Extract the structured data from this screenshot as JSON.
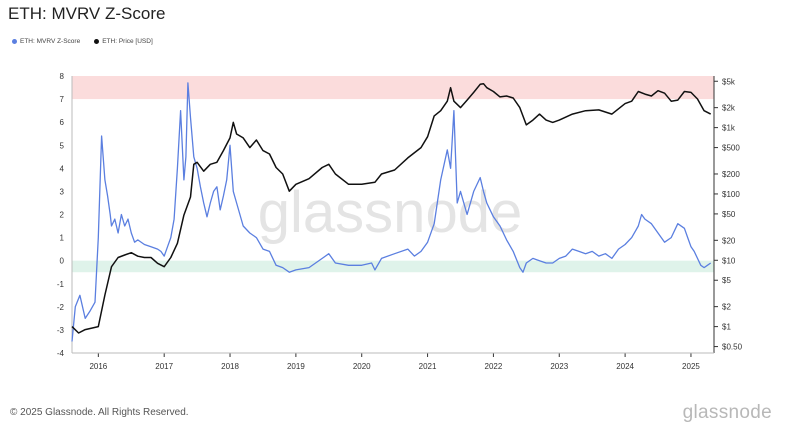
{
  "title": "ETH: MVRV Z-Score",
  "footer": "© 2025 Glassnode. All Rights Reserved.",
  "brand": "glassnode",
  "watermark": "glassnode",
  "chart_data": {
    "type": "line",
    "legend": [
      {
        "name": "ETH: MVRV Z-Score",
        "color": "#5b7fe0"
      },
      {
        "name": "ETH: Price [USD]",
        "color": "#111111"
      }
    ],
    "x_ticks": [
      "2016",
      "2017",
      "2018",
      "2019",
      "2020",
      "2021",
      "2022",
      "2023",
      "2024",
      "2025"
    ],
    "x_range": [
      2015.6,
      2025.35
    ],
    "left_axis": {
      "ticks": [
        8,
        7,
        6,
        5,
        4,
        3,
        2,
        1,
        0,
        -1,
        -2,
        -3,
        -4
      ],
      "range": [
        -4,
        8
      ]
    },
    "right_axis": {
      "scale": "log",
      "ticks": [
        "$5k",
        "$2k",
        "$1k",
        "$500",
        "$200",
        "$100",
        "$50",
        "$20",
        "$10",
        "$5",
        "$2",
        "$1",
        "$0.50"
      ],
      "tick_values": [
        5000,
        2000,
        1000,
        500,
        200,
        100,
        50,
        20,
        10,
        5,
        2,
        1,
        0.5
      ],
      "range": [
        0.4,
        6000
      ]
    },
    "bands": [
      {
        "zone": "overvalued",
        "from": 7,
        "to": 8,
        "color": "#fbdcdc"
      },
      {
        "zone": "undervalued",
        "from": -0.5,
        "to": 0,
        "color": "#dff3ea"
      }
    ],
    "series": [
      {
        "name": "ETH: MVRV Z-Score",
        "axis": "left",
        "color": "#5b7fe0",
        "x": [
          2015.6,
          2015.65,
          2015.72,
          2015.8,
          2015.87,
          2015.95,
          2016.0,
          2016.05,
          2016.1,
          2016.14,
          2016.18,
          2016.2,
          2016.25,
          2016.3,
          2016.35,
          2016.4,
          2016.45,
          2016.5,
          2016.55,
          2016.6,
          2016.7,
          2016.8,
          2016.9,
          2016.95,
          2017.0,
          2017.05,
          2017.1,
          2017.15,
          2017.2,
          2017.25,
          2017.3,
          2017.33,
          2017.36,
          2017.4,
          2017.45,
          2017.5,
          2017.55,
          2017.6,
          2017.65,
          2017.7,
          2017.75,
          2017.8,
          2017.85,
          2017.9,
          2017.95,
          2018.0,
          2018.05,
          2018.1,
          2018.2,
          2018.3,
          2018.4,
          2018.5,
          2018.6,
          2018.7,
          2018.8,
          2018.9,
          2019.0,
          2019.2,
          2019.4,
          2019.5,
          2019.6,
          2019.8,
          2020.0,
          2020.15,
          2020.2,
          2020.3,
          2020.5,
          2020.7,
          2020.8,
          2020.9,
          2021.0,
          2021.1,
          2021.2,
          2021.3,
          2021.35,
          2021.4,
          2021.45,
          2021.5,
          2021.6,
          2021.7,
          2021.8,
          2021.85,
          2021.9,
          2022.0,
          2022.1,
          2022.2,
          2022.3,
          2022.4,
          2022.45,
          2022.5,
          2022.6,
          2022.7,
          2022.8,
          2022.9,
          2023.0,
          2023.1,
          2023.2,
          2023.3,
          2023.4,
          2023.5,
          2023.6,
          2023.7,
          2023.8,
          2023.9,
          2024.0,
          2024.1,
          2024.2,
          2024.25,
          2024.3,
          2024.4,
          2024.5,
          2024.6,
          2024.7,
          2024.8,
          2024.9,
          2024.95,
          2025.0,
          2025.05,
          2025.1,
          2025.15,
          2025.2,
          2025.25,
          2025.3
        ],
        "y": [
          -3.5,
          -2.0,
          -1.5,
          -2.5,
          -2.2,
          -1.8,
          1.0,
          5.4,
          3.5,
          2.8,
          2.0,
          1.5,
          1.8,
          1.2,
          2.0,
          1.5,
          1.8,
          1.2,
          0.8,
          0.9,
          0.7,
          0.6,
          0.5,
          0.4,
          0.2,
          0.6,
          1.0,
          1.8,
          4.0,
          6.5,
          3.5,
          4.5,
          7.7,
          6.2,
          4.5,
          4.0,
          3.2,
          2.5,
          1.9,
          2.5,
          3.0,
          3.2,
          2.2,
          2.8,
          3.5,
          5.0,
          3.0,
          2.5,
          1.5,
          1.2,
          1.0,
          0.5,
          0.4,
          -0.2,
          -0.3,
          -0.5,
          -0.4,
          -0.3,
          0.1,
          0.3,
          -0.1,
          -0.2,
          -0.2,
          -0.1,
          -0.4,
          0.1,
          0.3,
          0.5,
          0.2,
          0.4,
          0.8,
          1.6,
          3.5,
          4.8,
          4.0,
          6.5,
          2.5,
          3.0,
          2.0,
          3.0,
          3.6,
          3.0,
          2.5,
          1.9,
          1.5,
          0.9,
          0.4,
          -0.3,
          -0.5,
          -0.1,
          0.1,
          0.0,
          -0.1,
          -0.1,
          0.1,
          0.2,
          0.5,
          0.4,
          0.3,
          0.4,
          0.2,
          0.3,
          0.1,
          0.5,
          0.7,
          1.0,
          1.5,
          2.0,
          1.8,
          1.6,
          1.2,
          0.8,
          1.0,
          1.6,
          1.4,
          1.0,
          0.6,
          0.4,
          0.1,
          -0.2,
          -0.3,
          -0.2,
          -0.1
        ]
      },
      {
        "name": "ETH: Price [USD]",
        "axis": "right",
        "color": "#111111",
        "x": [
          2015.6,
          2015.7,
          2015.8,
          2015.9,
          2016.0,
          2016.1,
          2016.2,
          2016.3,
          2016.4,
          2016.5,
          2016.6,
          2016.7,
          2016.8,
          2016.9,
          2017.0,
          2017.1,
          2017.2,
          2017.3,
          2017.4,
          2017.45,
          2017.5,
          2017.6,
          2017.7,
          2017.8,
          2017.9,
          2018.0,
          2018.05,
          2018.1,
          2018.2,
          2018.3,
          2018.4,
          2018.5,
          2018.6,
          2018.7,
          2018.8,
          2018.9,
          2019.0,
          2019.2,
          2019.4,
          2019.5,
          2019.6,
          2019.8,
          2020.0,
          2020.2,
          2020.3,
          2020.5,
          2020.7,
          2020.9,
          2021.0,
          2021.1,
          2021.2,
          2021.3,
          2021.35,
          2021.4,
          2021.5,
          2021.6,
          2021.7,
          2021.8,
          2021.85,
          2021.9,
          2022.0,
          2022.1,
          2022.2,
          2022.3,
          2022.4,
          2022.5,
          2022.6,
          2022.7,
          2022.8,
          2022.9,
          2023.0,
          2023.2,
          2023.4,
          2023.6,
          2023.8,
          2024.0,
          2024.1,
          2024.2,
          2024.3,
          2024.4,
          2024.5,
          2024.6,
          2024.7,
          2024.8,
          2024.9,
          2025.0,
          2025.1,
          2025.2,
          2025.3
        ],
        "y": [
          1.0,
          0.8,
          0.9,
          0.95,
          1.0,
          3.0,
          8.0,
          11.0,
          12.0,
          13.0,
          11.5,
          11.0,
          11.0,
          9.0,
          8.0,
          11.0,
          18.0,
          48.0,
          90.0,
          280.0,
          300.0,
          220.0,
          280.0,
          300.0,
          450.0,
          700.0,
          1200.0,
          800.0,
          700.0,
          500.0,
          650.0,
          450.0,
          400.0,
          250.0,
          200.0,
          110.0,
          140.0,
          170.0,
          250.0,
          280.0,
          200.0,
          140.0,
          140.0,
          150.0,
          200.0,
          230.0,
          350.0,
          500.0,
          730.0,
          1500.0,
          1800.0,
          2500.0,
          4000.0,
          2500.0,
          2000.0,
          2600.0,
          3400.0,
          4500.0,
          4600.0,
          4000.0,
          3500.0,
          2900.0,
          3000.0,
          2800.0,
          2000.0,
          1100.0,
          1300.0,
          1600.0,
          1300.0,
          1200.0,
          1300.0,
          1600.0,
          1800.0,
          1850.0,
          1600.0,
          2300.0,
          2500.0,
          3500.0,
          3200.0,
          3000.0,
          3600.0,
          3300.0,
          2500.0,
          2600.0,
          3500.0,
          3400.0,
          2700.0,
          1800.0,
          1600.0
        ]
      }
    ]
  }
}
